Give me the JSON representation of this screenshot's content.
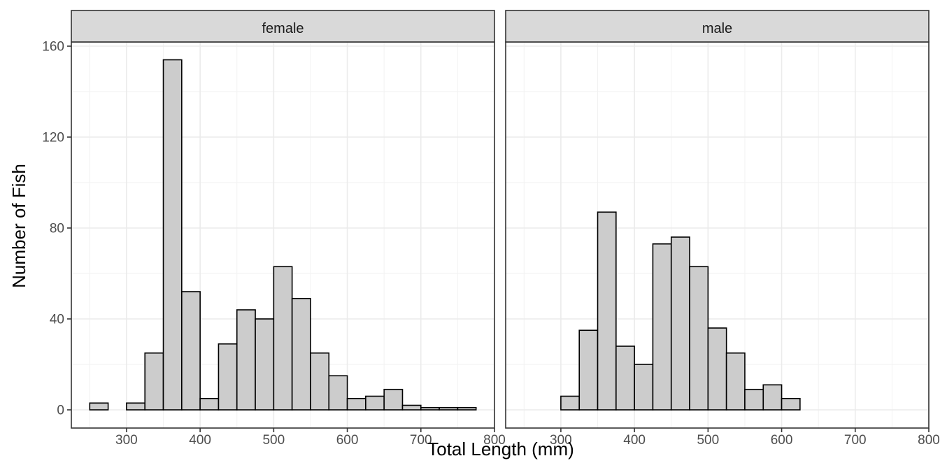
{
  "chart_data": {
    "type": "bar",
    "subtype": "histogram",
    "facet_by": "sex",
    "xlabel": "Total Length (mm)",
    "ylabel": "Number of Fish",
    "xlim": [
      225,
      800
    ],
    "ylim": [
      0,
      160
    ],
    "x_ticks": [
      300,
      400,
      500,
      600,
      700,
      800
    ],
    "y_ticks": [
      0,
      40,
      80,
      120,
      160
    ],
    "bin_width": 25,
    "bar_fill": "#cccccc",
    "bar_stroke": "#000000",
    "strip_fill": "#d9d9d9",
    "grid": true,
    "theme": "bw",
    "panels": [
      {
        "label": "female",
        "bins": [
          {
            "x0": 250,
            "x1": 275,
            "count": 3
          },
          {
            "x0": 275,
            "x1": 300,
            "count": 0
          },
          {
            "x0": 300,
            "x1": 325,
            "count": 3
          },
          {
            "x0": 325,
            "x1": 350,
            "count": 25
          },
          {
            "x0": 350,
            "x1": 375,
            "count": 154
          },
          {
            "x0": 375,
            "x1": 400,
            "count": 52
          },
          {
            "x0": 400,
            "x1": 425,
            "count": 5
          },
          {
            "x0": 425,
            "x1": 450,
            "count": 29
          },
          {
            "x0": 450,
            "x1": 475,
            "count": 44
          },
          {
            "x0": 475,
            "x1": 500,
            "count": 40
          },
          {
            "x0": 500,
            "x1": 525,
            "count": 63
          },
          {
            "x0": 525,
            "x1": 550,
            "count": 49
          },
          {
            "x0": 550,
            "x1": 575,
            "count": 25
          },
          {
            "x0": 575,
            "x1": 600,
            "count": 15
          },
          {
            "x0": 600,
            "x1": 625,
            "count": 5
          },
          {
            "x0": 625,
            "x1": 650,
            "count": 6
          },
          {
            "x0": 650,
            "x1": 675,
            "count": 9
          },
          {
            "x0": 675,
            "x1": 700,
            "count": 2
          },
          {
            "x0": 700,
            "x1": 725,
            "count": 1
          },
          {
            "x0": 725,
            "x1": 750,
            "count": 1
          },
          {
            "x0": 750,
            "x1": 775,
            "count": 1
          }
        ]
      },
      {
        "label": "male",
        "bins": [
          {
            "x0": 250,
            "x1": 275,
            "count": 0
          },
          {
            "x0": 275,
            "x1": 300,
            "count": 0
          },
          {
            "x0": 300,
            "x1": 325,
            "count": 6
          },
          {
            "x0": 325,
            "x1": 350,
            "count": 35
          },
          {
            "x0": 350,
            "x1": 375,
            "count": 87
          },
          {
            "x0": 375,
            "x1": 400,
            "count": 28
          },
          {
            "x0": 400,
            "x1": 425,
            "count": 20
          },
          {
            "x0": 425,
            "x1": 450,
            "count": 73
          },
          {
            "x0": 450,
            "x1": 475,
            "count": 76
          },
          {
            "x0": 475,
            "x1": 500,
            "count": 63
          },
          {
            "x0": 500,
            "x1": 525,
            "count": 36
          },
          {
            "x0": 525,
            "x1": 550,
            "count": 25
          },
          {
            "x0": 550,
            "x1": 575,
            "count": 9
          },
          {
            "x0": 575,
            "x1": 600,
            "count": 11
          },
          {
            "x0": 600,
            "x1": 625,
            "count": 5
          },
          {
            "x0": 625,
            "x1": 650,
            "count": 0
          },
          {
            "x0": 650,
            "x1": 675,
            "count": 0
          },
          {
            "x0": 675,
            "x1": 700,
            "count": 0
          },
          {
            "x0": 700,
            "x1": 725,
            "count": 0
          },
          {
            "x0": 725,
            "x1": 750,
            "count": 0
          },
          {
            "x0": 750,
            "x1": 775,
            "count": 0
          }
        ]
      }
    ]
  }
}
